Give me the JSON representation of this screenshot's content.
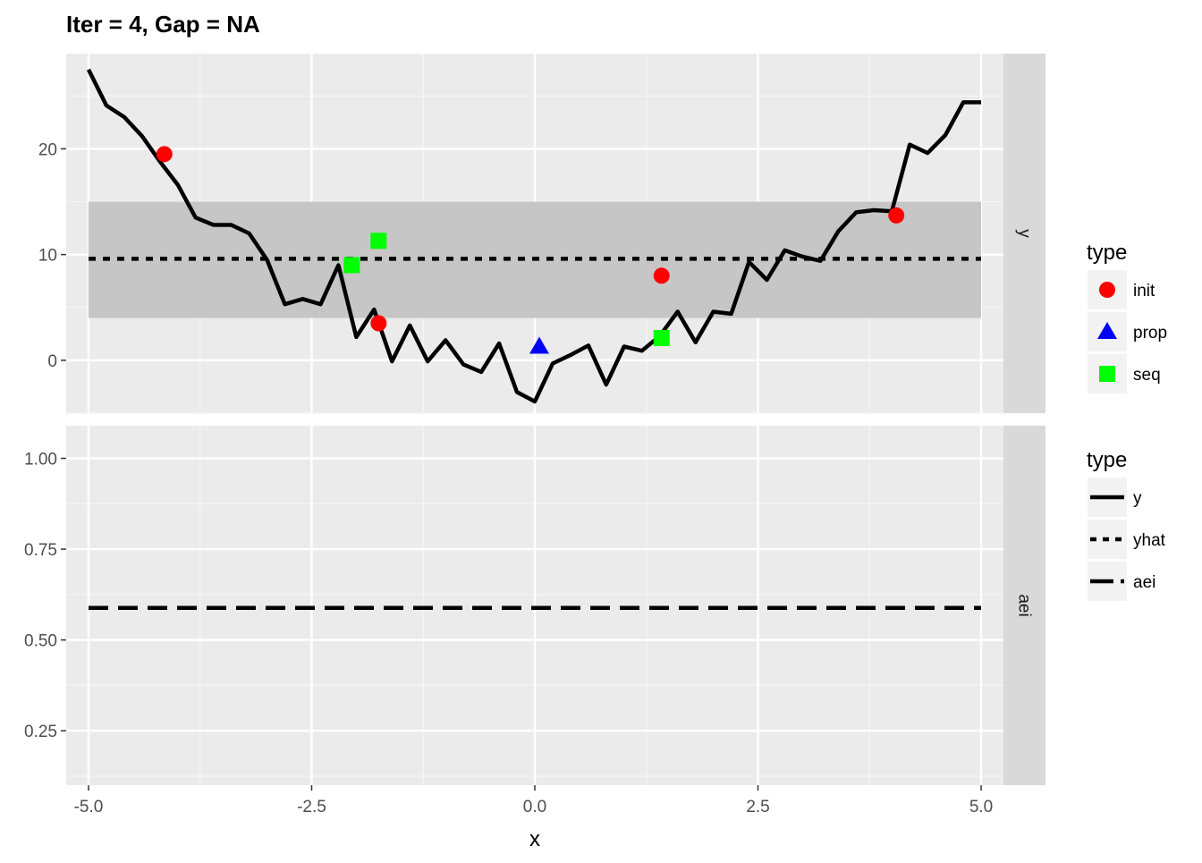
{
  "chart_data": {
    "type": "line",
    "title": "Iter = 4, Gap = NA",
    "xlabel": "x",
    "xlim": [
      -5.25,
      5.25
    ],
    "x_ticks": [
      -5.0,
      -2.5,
      0.0,
      2.5,
      5.0
    ],
    "x_tick_labels": [
      "-5.0",
      "-2.5",
      "0.0",
      "2.5",
      "5.0"
    ],
    "grid": true,
    "legend_position": "right",
    "panels": [
      {
        "strip_label": "y",
        "ylim": [
          -5,
          29
        ],
        "y_ticks": [
          0,
          10,
          20
        ],
        "y_tick_labels": [
          "0",
          "10",
          "20"
        ],
        "band": {
          "x": [
            -5,
            5
          ],
          "ymin": 4.0,
          "ymax": 15.0
        },
        "series": [
          {
            "name": "y",
            "style": "solid",
            "x": [
              -5.0,
              -4.8,
              -4.6,
              -4.4,
              -4.2,
              -4.0,
              -3.8,
              -3.6,
              -3.4,
              -3.2,
              -3.0,
              -2.8,
              -2.6,
              -2.4,
              -2.2,
              -2.0,
              -1.8,
              -1.6,
              -1.4,
              -1.2,
              -1.0,
              -0.8,
              -0.6,
              -0.4,
              -0.2,
              0.0,
              0.2,
              0.4,
              0.6,
              0.8,
              1.0,
              1.2,
              1.4,
              1.6,
              1.8,
              2.0,
              2.2,
              2.4,
              2.6,
              2.8,
              3.0,
              3.2,
              3.4,
              3.6,
              3.8,
              4.0,
              4.2,
              4.4,
              4.6,
              4.8,
              5.0
            ],
            "y": [
              27.5,
              24.1,
              23.0,
              21.2,
              18.8,
              16.6,
              13.5,
              12.8,
              12.8,
              12.0,
              9.5,
              5.3,
              5.8,
              5.3,
              9.0,
              2.2,
              4.8,
              -0.1,
              3.3,
              -0.1,
              1.9,
              -0.4,
              -1.1,
              1.6,
              -3.0,
              -3.9,
              -0.3,
              0.5,
              1.4,
              -2.3,
              1.3,
              0.9,
              2.3,
              4.6,
              1.7,
              4.6,
              4.4,
              9.3,
              7.6,
              10.4,
              9.8,
              9.4,
              12.2,
              14.0,
              14.2,
              14.1,
              20.4,
              19.6,
              21.3,
              24.4,
              24.4
            ]
          },
          {
            "name": "yhat",
            "style": "dotted",
            "x": [
              -5.0,
              5.0
            ],
            "y": [
              9.6,
              9.6
            ]
          }
        ],
        "points": [
          {
            "type": "init",
            "x": -4.15,
            "y": 19.5
          },
          {
            "type": "init",
            "x": -1.75,
            "y": 3.5
          },
          {
            "type": "init",
            "x": 1.42,
            "y": 8.0
          },
          {
            "type": "init",
            "x": 4.05,
            "y": 13.7
          },
          {
            "type": "prop",
            "x": 0.05,
            "y": 1.3
          },
          {
            "type": "seq",
            "x": -2.05,
            "y": 9.0
          },
          {
            "type": "seq",
            "x": -1.75,
            "y": 11.3
          },
          {
            "type": "seq",
            "x": 1.42,
            "y": 2.1
          }
        ]
      },
      {
        "strip_label": "aei",
        "ylim": [
          0.1,
          1.09
        ],
        "y_ticks": [
          0.25,
          0.5,
          0.75,
          1.0
        ],
        "y_tick_labels": [
          "0.25",
          "0.50",
          "0.75",
          "1.00"
        ],
        "series": [
          {
            "name": "aei",
            "style": "dashed",
            "x": [
              -5.0,
              5.0
            ],
            "y": [
              0.588,
              0.588
            ]
          }
        ]
      }
    ],
    "legends": [
      {
        "title": "type",
        "kind": "points",
        "entries": [
          {
            "label": "init",
            "shape": "circle",
            "color": "#ff0000"
          },
          {
            "label": "prop",
            "shape": "triangle",
            "color": "#0000ff"
          },
          {
            "label": "seq",
            "shape": "square",
            "color": "#00ff00"
          }
        ]
      },
      {
        "title": "type",
        "kind": "lines",
        "entries": [
          {
            "label": "y",
            "style": "solid"
          },
          {
            "label": "yhat",
            "style": "dotted"
          },
          {
            "label": "aei",
            "style": "dashed"
          }
        ]
      }
    ],
    "colors": {
      "panel_bg": "#ebebeb",
      "grid_major": "#ffffff",
      "grid_minor": "#f5f5f5",
      "strip_bg": "#d9d9d9",
      "band_fill": "#c6c6c6",
      "line": "#000000",
      "legend_key_bg": "#f2f2f2"
    }
  }
}
